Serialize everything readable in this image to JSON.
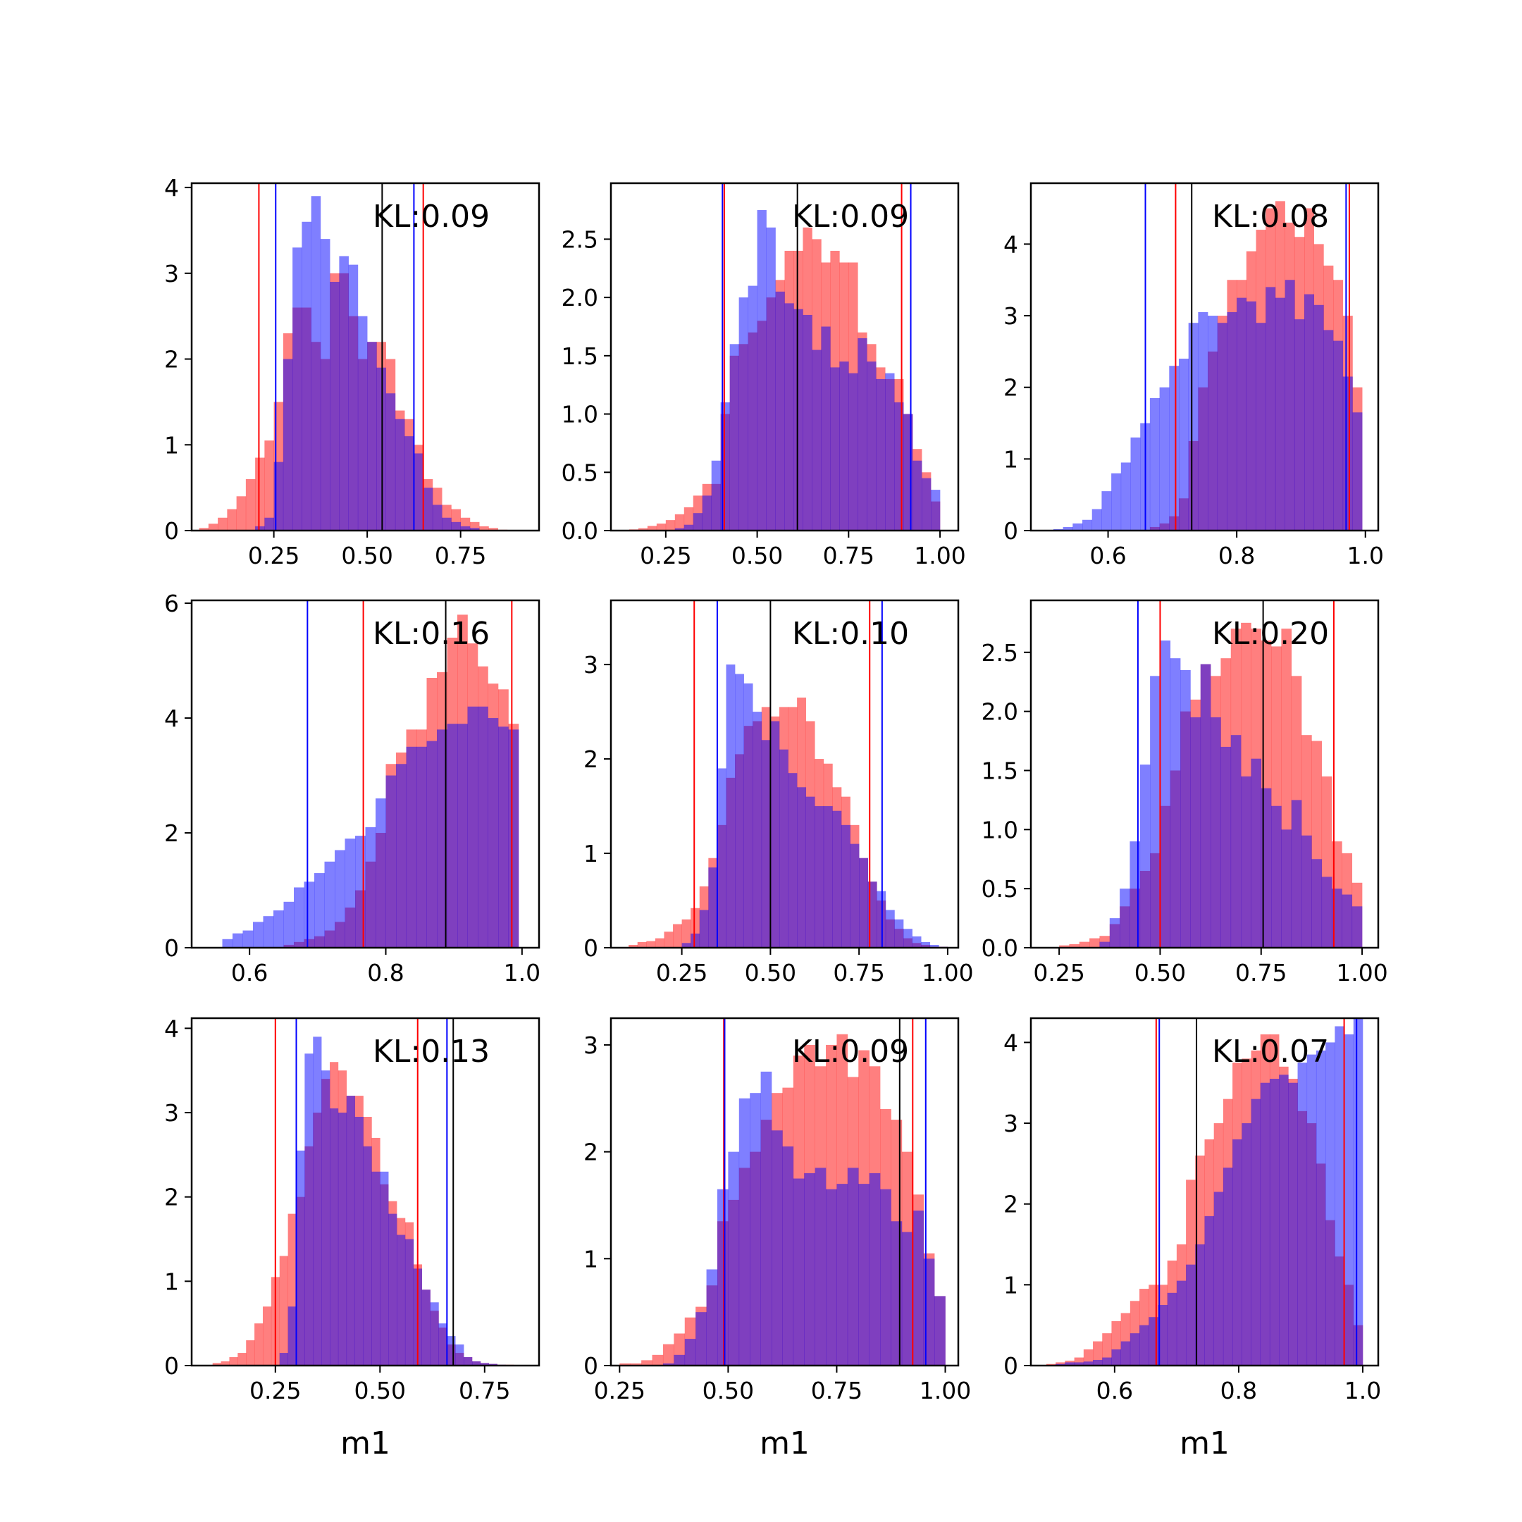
{
  "figure": {
    "background": "#ffffff",
    "red_color": "#ff0000",
    "blue_color": "#0000ff",
    "median_color": "#000000",
    "hist_alpha": 0.5,
    "grid": false
  },
  "chart_data": [
    {
      "type": "histogram",
      "kl": "KL:0.09",
      "xlabel": "",
      "xlim": [
        0.03,
        0.96
      ],
      "ylim": [
        0,
        4.05
      ],
      "xticks": [
        0.25,
        0.5,
        0.75
      ],
      "xtick_labels": [
        "0.25",
        "0.50",
        "0.75"
      ],
      "yticks": [
        0,
        1,
        2,
        3,
        4
      ],
      "ytick_labels": [
        "0",
        "1",
        "2",
        "3",
        "4"
      ],
      "bin_edges": [
        0.05,
        0.075,
        0.1,
        0.125,
        0.15,
        0.175,
        0.2,
        0.225,
        0.25,
        0.275,
        0.3,
        0.325,
        0.35,
        0.375,
        0.4,
        0.425,
        0.45,
        0.475,
        0.5,
        0.525,
        0.55,
        0.575,
        0.6,
        0.625,
        0.65,
        0.675,
        0.7,
        0.725,
        0.75,
        0.775,
        0.8,
        0.825,
        0.85,
        0.875
      ],
      "red": [
        0.03,
        0.08,
        0.15,
        0.25,
        0.4,
        0.6,
        0.85,
        1.05,
        1.5,
        2.3,
        2.6,
        2.6,
        2.2,
        2.0,
        3.0,
        3.0,
        2.5,
        2.0,
        2.2,
        2.2,
        2.0,
        1.4,
        1.3,
        1.0,
        0.6,
        0.5,
        0.3,
        0.25,
        0.15,
        0.1,
        0.05,
        0.03,
        0.01
      ],
      "blue": [
        0,
        0,
        0,
        0,
        0,
        0,
        0.05,
        0.15,
        0.8,
        2.0,
        3.3,
        3.6,
        3.9,
        3.4,
        2.9,
        3.2,
        3.1,
        2.5,
        2.2,
        1.9,
        1.6,
        1.3,
        1.1,
        0.9,
        0.5,
        0.3,
        0.15,
        0.1,
        0.05,
        0.03,
        0,
        0,
        0
      ],
      "red_lines": [
        0.21,
        0.65
      ],
      "blue_lines": [
        0.255,
        0.625
      ],
      "median_lines": [
        0.54
      ]
    },
    {
      "type": "histogram",
      "kl": "KL:0.09",
      "xlabel": "",
      "xlim": [
        0.1,
        1.05
      ],
      "ylim": [
        0,
        2.98
      ],
      "xticks": [
        0.25,
        0.5,
        0.75,
        1.0
      ],
      "xtick_labels": [
        "0.25",
        "0.50",
        "0.75",
        "1.00"
      ],
      "yticks": [
        0,
        0.5,
        1.0,
        1.5,
        2.0,
        2.5
      ],
      "ytick_labels": [
        "0.0",
        "0.5",
        "1.0",
        "1.5",
        "2.0",
        "2.5"
      ],
      "bin_edges": [
        0.15,
        0.175,
        0.2,
        0.225,
        0.25,
        0.275,
        0.3,
        0.325,
        0.35,
        0.375,
        0.4,
        0.425,
        0.45,
        0.475,
        0.5,
        0.525,
        0.55,
        0.575,
        0.6,
        0.625,
        0.65,
        0.675,
        0.7,
        0.725,
        0.75,
        0.775,
        0.8,
        0.825,
        0.85,
        0.875,
        0.9,
        0.925,
        0.95,
        0.975,
        1.0
      ],
      "red": [
        0.01,
        0.02,
        0.04,
        0.06,
        0.09,
        0.14,
        0.2,
        0.3,
        0.4,
        0.4,
        1.0,
        1.5,
        1.6,
        1.7,
        1.8,
        2.0,
        2.15,
        2.4,
        2.4,
        2.6,
        2.5,
        2.3,
        2.4,
        2.3,
        2.3,
        1.7,
        1.6,
        1.4,
        1.3,
        1.3,
        1.0,
        0.7,
        0.5,
        0.25
      ],
      "blue": [
        0,
        0,
        0,
        0,
        0,
        0.02,
        0.05,
        0.15,
        0.3,
        0.6,
        1.1,
        1.6,
        2.0,
        2.1,
        2.75,
        2.6,
        2.05,
        1.95,
        1.9,
        1.85,
        1.55,
        1.75,
        1.4,
        1.45,
        1.35,
        1.65,
        1.45,
        1.3,
        1.35,
        1.1,
        1.0,
        0.6,
        0.45,
        0.35
      ],
      "red_lines": [
        0.41,
        0.895
      ],
      "blue_lines": [
        0.405,
        0.92
      ],
      "median_lines": [
        0.61
      ]
    },
    {
      "type": "histogram",
      "kl": "KL:0.08",
      "xlabel": "",
      "xlim": [
        0.48,
        1.02
      ],
      "ylim": [
        0,
        4.85
      ],
      "xticks": [
        0.6,
        0.8,
        1.0
      ],
      "xtick_labels": [
        "0.6",
        "0.8",
        "1.0"
      ],
      "yticks": [
        0,
        1,
        2,
        3,
        4
      ],
      "ytick_labels": [
        "0",
        "1",
        "2",
        "3",
        "4"
      ],
      "bin_edges": [
        0.5,
        0.515,
        0.53,
        0.545,
        0.56,
        0.575,
        0.59,
        0.605,
        0.62,
        0.635,
        0.65,
        0.665,
        0.68,
        0.695,
        0.71,
        0.725,
        0.74,
        0.755,
        0.77,
        0.785,
        0.8,
        0.815,
        0.83,
        0.845,
        0.86,
        0.875,
        0.89,
        0.905,
        0.92,
        0.935,
        0.95,
        0.965,
        0.98,
        0.995
      ],
      "red": [
        0,
        0,
        0,
        0,
        0,
        0,
        0,
        0,
        0,
        0,
        0,
        0.05,
        0.1,
        0.2,
        0.45,
        1.25,
        2.0,
        2.5,
        3.0,
        3.5,
        3.5,
        3.9,
        4.2,
        4.5,
        4.6,
        4.3,
        4.1,
        4.5,
        4.0,
        3.7,
        3.5,
        3.0,
        2.0
      ],
      "blue": [
        0.01,
        0.02,
        0.05,
        0.1,
        0.15,
        0.3,
        0.55,
        0.8,
        0.95,
        1.3,
        1.5,
        1.85,
        2.0,
        2.3,
        2.4,
        2.9,
        3.05,
        3.0,
        2.9,
        3.05,
        3.25,
        3.2,
        2.9,
        3.4,
        3.25,
        3.5,
        2.95,
        3.3,
        3.15,
        2.8,
        2.65,
        2.15,
        1.65
      ],
      "red_lines": [
        0.705,
        0.975
      ],
      "blue_lines": [
        0.658,
        0.97
      ],
      "median_lines": [
        0.73
      ]
    },
    {
      "type": "histogram",
      "kl": "KL:0.16",
      "xlabel": "",
      "xlim": [
        0.515,
        1.025
      ],
      "ylim": [
        0,
        6.05
      ],
      "xticks": [
        0.6,
        0.8,
        1.0
      ],
      "xtick_labels": [
        "0.6",
        "0.8",
        "1.0"
      ],
      "yticks": [
        0,
        2,
        4,
        6
      ],
      "ytick_labels": [
        "0",
        "2",
        "4",
        "6"
      ],
      "bin_edges": [
        0.56,
        0.575,
        0.59,
        0.605,
        0.62,
        0.635,
        0.65,
        0.665,
        0.68,
        0.695,
        0.71,
        0.725,
        0.74,
        0.755,
        0.77,
        0.785,
        0.8,
        0.815,
        0.83,
        0.845,
        0.86,
        0.875,
        0.89,
        0.905,
        0.92,
        0.935,
        0.95,
        0.965,
        0.98,
        0.995
      ],
      "red": [
        0,
        0,
        0,
        0,
        0,
        0,
        0.05,
        0.1,
        0.15,
        0.2,
        0.3,
        0.45,
        0.7,
        1.0,
        1.5,
        2.0,
        3.2,
        3.4,
        3.8,
        3.8,
        4.7,
        4.8,
        5.4,
        5.8,
        5.3,
        4.9,
        4.6,
        4.5,
        3.9
      ],
      "blue": [
        0.15,
        0.25,
        0.3,
        0.45,
        0.55,
        0.65,
        0.8,
        1.05,
        1.15,
        1.3,
        1.5,
        1.7,
        1.9,
        1.95,
        2.1,
        2.6,
        3.0,
        3.2,
        3.5,
        3.5,
        3.6,
        3.8,
        3.9,
        3.9,
        4.2,
        4.2,
        4.0,
        3.85,
        3.8
      ],
      "red_lines": [
        0.767,
        0.985
      ],
      "blue_lines": [
        0.685
      ],
      "median_lines": [
        0.888
      ]
    },
    {
      "type": "histogram",
      "kl": "KL:0.10",
      "xlabel": "",
      "xlim": [
        0.05,
        1.03
      ],
      "ylim": [
        0,
        3.68
      ],
      "xticks": [
        0.25,
        0.5,
        0.75,
        1.0
      ],
      "xtick_labels": [
        "0.25",
        "0.50",
        "0.75",
        "1.00"
      ],
      "yticks": [
        0,
        1,
        2,
        3
      ],
      "ytick_labels": [
        "0",
        "1",
        "2",
        "3"
      ],
      "bin_edges": [
        0.1,
        0.125,
        0.15,
        0.175,
        0.2,
        0.225,
        0.25,
        0.275,
        0.3,
        0.325,
        0.35,
        0.375,
        0.4,
        0.425,
        0.45,
        0.475,
        0.5,
        0.525,
        0.55,
        0.575,
        0.6,
        0.625,
        0.65,
        0.675,
        0.7,
        0.725,
        0.75,
        0.775,
        0.8,
        0.825,
        0.85,
        0.875,
        0.9,
        0.925,
        0.95,
        0.975,
        1.0
      ],
      "red": [
        0.03,
        0.06,
        0.07,
        0.1,
        0.17,
        0.25,
        0.3,
        0.42,
        0.65,
        0.95,
        1.3,
        1.8,
        2.05,
        2.35,
        2.4,
        2.55,
        2.45,
        2.55,
        2.55,
        2.65,
        2.4,
        2.0,
        1.95,
        1.7,
        1.6,
        1.3,
        0.95,
        0.7,
        0.5,
        0.3,
        0.2,
        0.1,
        0.05,
        0.03,
        0.01,
        0.01
      ],
      "blue": [
        0,
        0,
        0,
        0,
        0,
        0,
        0.05,
        0.15,
        0.4,
        0.85,
        1.9,
        3.0,
        2.9,
        2.8,
        2.5,
        2.2,
        2.4,
        2.1,
        1.85,
        1.7,
        1.6,
        1.5,
        1.5,
        1.45,
        1.3,
        1.1,
        0.95,
        0.7,
        0.6,
        0.4,
        0.3,
        0.2,
        0.12,
        0.06,
        0.03,
        0.01
      ],
      "red_lines": [
        0.285,
        0.78
      ],
      "blue_lines": [
        0.35,
        0.815
      ],
      "median_lines": [
        0.5
      ]
    },
    {
      "type": "histogram",
      "kl": "KL:0.20",
      "xlabel": "",
      "xlim": [
        0.18,
        1.04
      ],
      "ylim": [
        0,
        2.94
      ],
      "xticks": [
        0.25,
        0.5,
        0.75,
        1.0
      ],
      "xtick_labels": [
        "0.25",
        "0.50",
        "0.75",
        "1.00"
      ],
      "yticks": [
        0,
        0.5,
        1.0,
        1.5,
        2.0,
        2.5
      ],
      "ytick_labels": [
        "0.0",
        "0.5",
        "1.0",
        "1.5",
        "2.0",
        "2.5"
      ],
      "bin_edges": [
        0.25,
        0.275,
        0.3,
        0.325,
        0.35,
        0.375,
        0.4,
        0.425,
        0.45,
        0.475,
        0.5,
        0.525,
        0.55,
        0.575,
        0.6,
        0.625,
        0.65,
        0.675,
        0.7,
        0.725,
        0.75,
        0.775,
        0.8,
        0.825,
        0.85,
        0.875,
        0.9,
        0.925,
        0.95,
        0.975,
        1.0
      ],
      "red": [
        0.02,
        0.03,
        0.05,
        0.08,
        0.1,
        0.2,
        0.35,
        0.5,
        0.65,
        0.8,
        1.2,
        1.5,
        2.0,
        2.1,
        2.4,
        2.3,
        2.45,
        2.7,
        2.75,
        2.7,
        2.6,
        2.55,
        2.7,
        2.3,
        1.8,
        1.75,
        1.45,
        0.9,
        0.8,
        0.55
      ],
      "blue": [
        0,
        0,
        0,
        0,
        0.05,
        0.25,
        0.5,
        0.9,
        1.55,
        2.3,
        2.6,
        2.45,
        2.35,
        1.95,
        2.4,
        1.95,
        1.7,
        1.8,
        1.45,
        1.6,
        1.35,
        1.2,
        1.0,
        1.25,
        0.95,
        0.75,
        0.6,
        0.5,
        0.45,
        0.35
      ],
      "red_lines": [
        0.5,
        0.93
      ],
      "blue_lines": [
        0.445
      ],
      "median_lines": [
        0.755
      ]
    },
    {
      "type": "histogram",
      "kl": "KL:0.13",
      "xlabel": "m1",
      "xlim": [
        0.05,
        0.88
      ],
      "ylim": [
        0,
        4.12
      ],
      "xticks": [
        0.25,
        0.5,
        0.75
      ],
      "xtick_labels": [
        "0.25",
        "0.50",
        "0.75"
      ],
      "yticks": [
        0,
        1,
        2,
        3,
        4
      ],
      "ytick_labels": [
        "0",
        "1",
        "2",
        "3",
        "4"
      ],
      "bin_edges": [
        0.1,
        0.12,
        0.14,
        0.16,
        0.18,
        0.2,
        0.22,
        0.24,
        0.26,
        0.28,
        0.3,
        0.32,
        0.34,
        0.36,
        0.38,
        0.4,
        0.42,
        0.44,
        0.46,
        0.48,
        0.5,
        0.52,
        0.54,
        0.56,
        0.58,
        0.6,
        0.62,
        0.64,
        0.66,
        0.68,
        0.7,
        0.72,
        0.74,
        0.76,
        0.78,
        0.8,
        0.82
      ],
      "red": [
        0.03,
        0.05,
        0.1,
        0.15,
        0.3,
        0.5,
        0.7,
        1.05,
        1.3,
        1.8,
        2.0,
        2.6,
        3.0,
        3.4,
        3.6,
        3.5,
        3.2,
        3.2,
        2.95,
        2.7,
        2.15,
        1.95,
        1.75,
        1.7,
        1.2,
        0.9,
        0.65,
        0.45,
        0.25,
        0.15,
        0.1,
        0.05,
        0.03,
        0.02,
        0.01,
        0.01
      ],
      "blue": [
        0,
        0,
        0,
        0,
        0,
        0,
        0,
        0,
        0.15,
        0.7,
        2.55,
        3.7,
        3.9,
        3.5,
        3.05,
        3.0,
        3.2,
        2.95,
        2.6,
        2.3,
        2.3,
        1.8,
        1.55,
        1.5,
        1.15,
        0.9,
        0.75,
        0.5,
        0.35,
        0.25,
        0.1,
        0.05,
        0.03,
        0.02,
        0.01,
        0
      ],
      "red_lines": [
        0.25,
        0.59
      ],
      "blue_lines": [
        0.3,
        0.66
      ],
      "median_lines": [
        0.675
      ]
    },
    {
      "type": "histogram",
      "kl": "KL:0.09",
      "xlabel": "m1",
      "xlim": [
        0.23,
        1.03
      ],
      "ylim": [
        0,
        3.25
      ],
      "xticks": [
        0.25,
        0.5,
        0.75,
        1.0
      ],
      "xtick_labels": [
        "0.25",
        "0.50",
        "0.75",
        "1.00"
      ],
      "yticks": [
        0,
        1,
        2,
        3
      ],
      "ytick_labels": [
        "0",
        "1",
        "2",
        "3"
      ],
      "bin_edges": [
        0.25,
        0.275,
        0.3,
        0.325,
        0.35,
        0.375,
        0.4,
        0.425,
        0.45,
        0.475,
        0.5,
        0.525,
        0.55,
        0.575,
        0.6,
        0.625,
        0.65,
        0.675,
        0.7,
        0.725,
        0.75,
        0.775,
        0.8,
        0.825,
        0.85,
        0.875,
        0.9,
        0.925,
        0.95,
        0.975,
        1.0
      ],
      "red": [
        0.02,
        0.02,
        0.05,
        0.1,
        0.2,
        0.3,
        0.45,
        0.55,
        0.75,
        1.35,
        1.55,
        1.85,
        2.0,
        2.3,
        2.55,
        2.6,
        2.9,
        3.0,
        2.8,
        3.0,
        3.1,
        2.7,
        2.95,
        2.8,
        2.4,
        2.3,
        2.0,
        1.6,
        1.05,
        0.65
      ],
      "blue": [
        0,
        0,
        0,
        0,
        0.02,
        0.1,
        0.25,
        0.5,
        0.9,
        1.65,
        2.0,
        2.5,
        2.55,
        2.75,
        2.2,
        2.05,
        1.75,
        1.8,
        1.85,
        1.65,
        1.7,
        1.85,
        1.7,
        1.8,
        1.65,
        1.35,
        1.25,
        1.45,
        1.0,
        0.65
      ],
      "red_lines": [
        0.49,
        0.925
      ],
      "blue_lines": [
        0.492,
        0.955
      ],
      "median_lines": [
        0.895
      ]
    },
    {
      "type": "histogram",
      "kl": "KL:0.07",
      "xlabel": "m1",
      "xlim": [
        0.465,
        1.025
      ],
      "ylim": [
        0,
        4.3
      ],
      "xticks": [
        0.6,
        0.8,
        1.0
      ],
      "xtick_labels": [
        "0.6",
        "0.8",
        "1.0"
      ],
      "yticks": [
        0,
        1,
        2,
        3,
        4
      ],
      "ytick_labels": [
        "0",
        "1",
        "2",
        "3",
        "4"
      ],
      "bin_edges": [
        0.49,
        0.505,
        0.52,
        0.535,
        0.55,
        0.565,
        0.58,
        0.595,
        0.61,
        0.625,
        0.64,
        0.655,
        0.67,
        0.685,
        0.7,
        0.715,
        0.73,
        0.745,
        0.76,
        0.775,
        0.79,
        0.805,
        0.82,
        0.835,
        0.85,
        0.865,
        0.88,
        0.895,
        0.91,
        0.925,
        0.94,
        0.955,
        0.97,
        0.985,
        1.0
      ],
      "red": [
        0.02,
        0.04,
        0.06,
        0.1,
        0.2,
        0.3,
        0.4,
        0.55,
        0.65,
        0.8,
        0.95,
        1.0,
        1.0,
        1.3,
        1.5,
        2.3,
        2.6,
        2.8,
        3.0,
        3.3,
        3.75,
        3.8,
        3.9,
        4.1,
        4.1,
        3.7,
        3.55,
        3.15,
        3.0,
        2.5,
        1.8,
        1.35,
        1.0,
        0.5
      ],
      "blue": [
        0,
        0.02,
        0.04,
        0.04,
        0.05,
        0.07,
        0.1,
        0.2,
        0.3,
        0.4,
        0.5,
        0.6,
        0.75,
        0.9,
        1.05,
        1.25,
        1.5,
        1.85,
        2.15,
        2.45,
        2.8,
        3.0,
        3.3,
        3.5,
        3.55,
        3.6,
        3.5,
        3.75,
        3.85,
        3.9,
        4.0,
        4.2,
        4.1,
        4.3
      ],
      "red_lines": [
        0.667,
        0.97
      ],
      "blue_lines": [
        0.672,
        0.99
      ],
      "median_lines": [
        0.732
      ]
    }
  ]
}
